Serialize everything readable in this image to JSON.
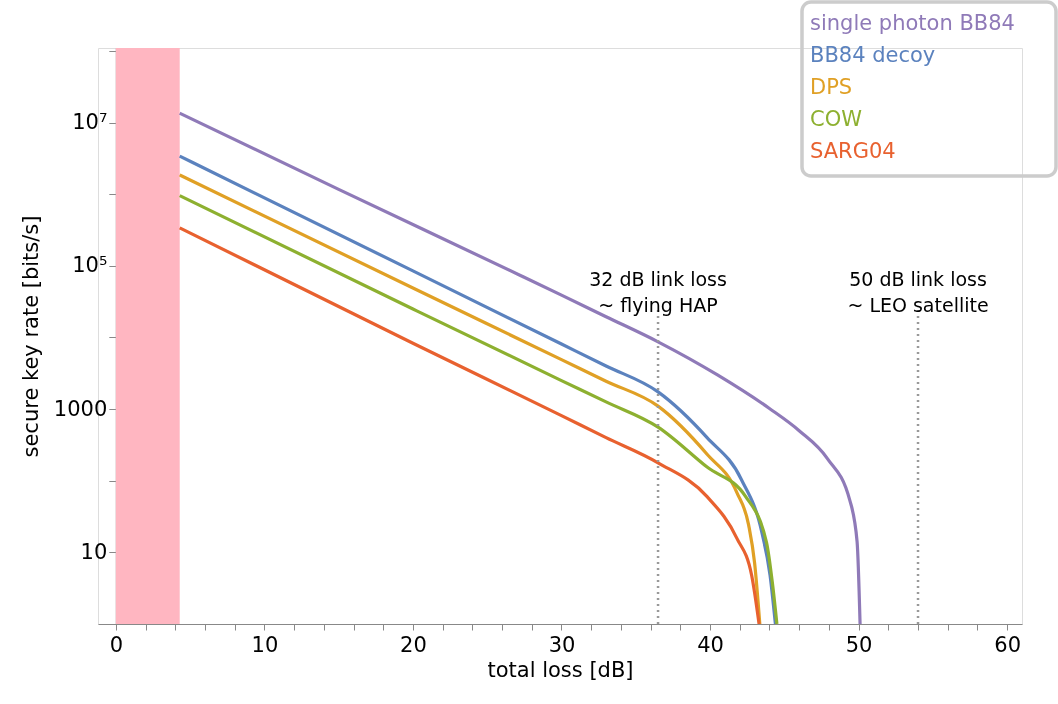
{
  "chart_data": {
    "type": "line",
    "xlabel": "total loss [dB]",
    "ylabel": "secure key rate [bits/s]",
    "log": "y",
    "legend": "top right",
    "xlim": [
      -1.2,
      61
    ],
    "ylim": [
      1,
      110000000
    ],
    "xticks": [
      0,
      {
        "value": 2,
        "label": null
      },
      {
        "value": 4,
        "label": null
      },
      {
        "value": 6,
        "label": null
      },
      {
        "value": 8,
        "label": null
      },
      10,
      {
        "value": 12,
        "label": null
      },
      {
        "value": 14,
        "label": null
      },
      {
        "value": 16,
        "label": null
      },
      {
        "value": 18,
        "label": null
      },
      20,
      {
        "value": 22,
        "label": null
      },
      {
        "value": 24,
        "label": null
      },
      {
        "value": 26,
        "label": null
      },
      {
        "value": 28,
        "label": null
      },
      30,
      {
        "value": 32,
        "label": null
      },
      {
        "value": 34,
        "label": null
      },
      {
        "value": 36,
        "label": null
      },
      {
        "value": 38,
        "label": null
      },
      40,
      {
        "value": 42,
        "label": null
      },
      {
        "value": 44,
        "label": null
      },
      {
        "value": 46,
        "label": null
      },
      {
        "value": 48,
        "label": null
      },
      50,
      {
        "value": 52,
        "label": null
      },
      {
        "value": 54,
        "label": null
      },
      {
        "value": 56,
        "label": null
      },
      {
        "value": 58,
        "label": null
      },
      60
    ],
    "yticks": [
      10,
      {
        "value": 100,
        "label": null
      },
      1000,
      {
        "value": 10000,
        "label": null
      },
      {
        "value": 100000,
        "label": "10⁵"
      },
      {
        "value": 1000000,
        "label": null
      },
      {
        "value": 10000000,
        "label": "10⁷"
      },
      {
        "value": 100000000,
        "label": null
      }
    ],
    "series": [
      {
        "name": "single photon BB84",
        "color": "#8f7ab8",
        "x": [
          4.3,
          15,
          27.2,
          30,
          33,
          36.5,
          40.5,
          44,
          46,
          47.9,
          49.4,
          49.9,
          50.1
        ],
        "values": [
          13500000,
          1170000,
          74000,
          39000,
          19500,
          8700,
          3000,
          1020,
          500,
          204,
          54,
          14,
          1
        ]
      },
      {
        "name": "BB84 decoy",
        "color": "#5b82be",
        "x": [
          4.3,
          20,
          30,
          33,
          36.5,
          39.8,
          42.1,
          43.5,
          44.04,
          44.4
        ],
        "values": [
          3400000,
          85000,
          8100,
          4000,
          1740,
          400,
          105,
          18.6,
          4.8,
          1
        ]
      },
      {
        "name": "DPS",
        "color": "#e0a025",
        "x": [
          4.3,
          20,
          30,
          33,
          36.5,
          39.8,
          41.8,
          42.6,
          43.0,
          43.35
        ],
        "values": [
          1860000,
          49000,
          4900,
          2450,
          1100,
          234,
          69,
          24,
          7.1,
          1
        ]
      },
      {
        "name": "COW",
        "color": "#8db030",
        "x": [
          4.3,
          20,
          30,
          33,
          36.5,
          39.8,
          42.4,
          43.8,
          44.2,
          44.5
        ],
        "values": [
          955000,
          25000,
          2500,
          1260,
          560,
          155,
          60,
          13.8,
          3.7,
          1
        ]
      },
      {
        "name": "SARG04",
        "color": "#e8612f",
        "x": [
          4.3,
          20,
          30,
          33,
          36.5,
          39.8,
          41.8,
          42.8,
          43.3
        ],
        "values": [
          339000,
          8300,
          810,
          400,
          178,
          60,
          15.8,
          4.8,
          1
        ]
      }
    ],
    "bands": [
      {
        "axis": "x",
        "from": 0,
        "to": 4.3,
        "color": "#ffb6c1"
      }
    ],
    "ref_lines": [
      {
        "axis": "x",
        "value": 36.5,
        "label": "32 dB link loss\n~ flying HAP",
        "color": "#999999",
        "line_style": "dotted"
      },
      {
        "axis": "x",
        "value": 54,
        "label": "50 dB link loss\n~ LEO satellite",
        "color": "#999999",
        "line_style": "dotted"
      }
    ]
  }
}
